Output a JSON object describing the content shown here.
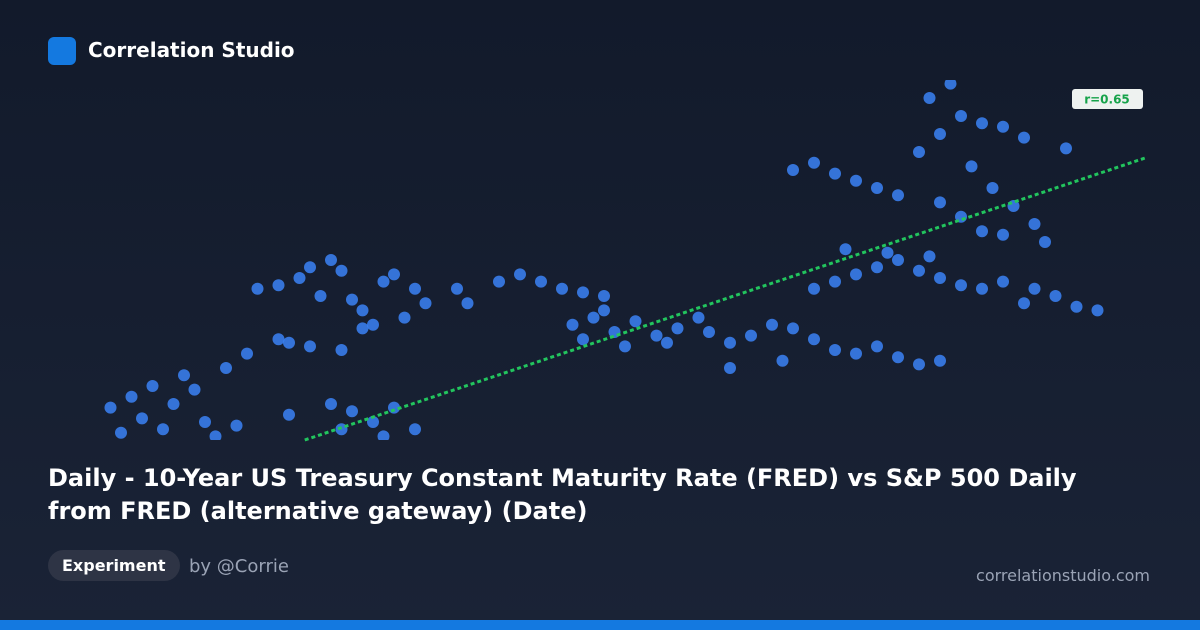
{
  "header": {
    "brand": "Correlation Studio"
  },
  "chart_data": {
    "type": "scatter",
    "title": "Daily - 10-Year US Treasury Constant Maturity Rate (FRED) vs S&P 500 Daily from FRED (alternative gateway) (Date)",
    "annotation": "r=0.65",
    "color": "#3b82f6",
    "trend_color": "#22c55e",
    "xlim": [
      0,
      100
    ],
    "ylim": [
      0,
      100
    ],
    "trendline": {
      "x": [
        19.5,
        99.5
      ],
      "y": [
        0,
        78.3
      ]
    },
    "x": [
      1,
      3,
      5,
      4,
      7,
      8,
      9,
      6,
      2,
      10,
      12,
      14,
      17,
      11,
      15,
      17,
      19,
      20,
      22,
      23,
      21,
      24,
      25,
      26,
      27,
      28,
      30,
      31,
      29,
      18,
      20,
      23,
      25,
      22,
      24,
      26,
      28,
      30,
      27,
      23,
      18,
      13,
      38,
      40,
      42,
      44,
      46,
      48,
      35,
      34,
      45,
      47,
      49,
      51,
      53,
      54,
      50,
      48,
      46,
      55,
      58,
      60,
      62,
      64,
      66,
      68,
      70,
      72,
      74,
      76,
      78,
      80,
      60,
      65,
      57,
      68,
      70,
      72,
      74,
      76,
      78,
      80,
      82,
      84,
      86,
      71,
      75,
      79,
      66,
      68,
      70,
      72,
      74,
      76,
      78,
      80,
      82,
      84,
      86,
      88,
      79,
      81,
      83,
      85,
      87,
      89,
      82,
      84,
      80,
      90,
      86,
      92,
      91,
      93,
      95,
      88,
      89
    ],
    "values": [
      9,
      12,
      15,
      6,
      10,
      18,
      14,
      3,
      2,
      5,
      20,
      24,
      28,
      1,
      42,
      43,
      45,
      48,
      50,
      47,
      40,
      39,
      36,
      32,
      44,
      46,
      42,
      38,
      34,
      27,
      26,
      25,
      31,
      10,
      8,
      5,
      9,
      3,
      1,
      3,
      7,
      4,
      44,
      46,
      44,
      42,
      41,
      40,
      38,
      42,
      32,
      34,
      30,
      33,
      29,
      27,
      26,
      36,
      28,
      31,
      30,
      27,
      29,
      32,
      31,
      28,
      25,
      24,
      26,
      23,
      21,
      22,
      20,
      22,
      34,
      42,
      44,
      46,
      48,
      50,
      47,
      45,
      43,
      42,
      44,
      53,
      52,
      51,
      75,
      77,
      74,
      72,
      70,
      68,
      80,
      85,
      90,
      88,
      87,
      84,
      95,
      99,
      76,
      70,
      65,
      60,
      62,
      58,
      66,
      55,
      57,
      81,
      40,
      37,
      36,
      38,
      42
    ]
  },
  "footer": {
    "tag": "Experiment",
    "author": "by @Corrie",
    "site": "correlationstudio.com"
  }
}
